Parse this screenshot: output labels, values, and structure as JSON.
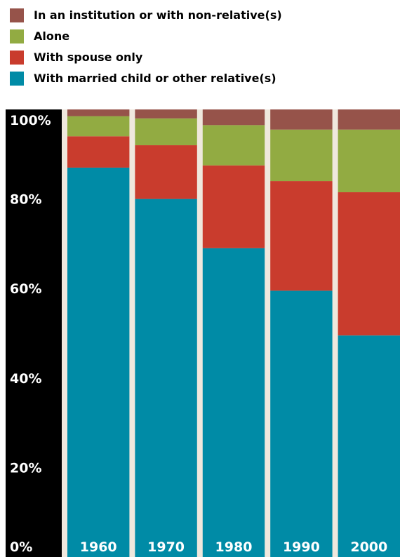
{
  "legend": [
    {
      "label": "In an institution or with non-relative(s)",
      "color": "#96534a"
    },
    {
      "label": "Alone",
      "color": "#92ab42"
    },
    {
      "label": "With spouse only",
      "color": "#c93c2d"
    },
    {
      "label": "With married child or other relative(s)",
      "color": "#008ba6"
    }
  ],
  "colors": {
    "axis_background": "#000000",
    "axis_text": "#ffffff",
    "gap": "#efe8dd",
    "category_text": "#ffffff"
  },
  "chart_data": {
    "type": "bar",
    "stacked": true,
    "categories": [
      "1960",
      "1970",
      "1980",
      "1990",
      "2000"
    ],
    "series": [
      {
        "name": "With married child or other relative(s)",
        "values": [
          87,
          80,
          69,
          59.5,
          49.5
        ]
      },
      {
        "name": "With spouse only",
        "values": [
          7,
          12,
          18.5,
          24.5,
          32
        ]
      },
      {
        "name": "Alone",
        "values": [
          4.5,
          6,
          9,
          11.5,
          14
        ]
      },
      {
        "name": "In an institution or with non-relative(s)",
        "values": [
          1.5,
          2,
          3.5,
          4.5,
          4.5
        ]
      }
    ],
    "ylim": [
      0,
      100
    ],
    "yticks": [
      "0%",
      "20%",
      "40%",
      "60%",
      "80%",
      "100%"
    ],
    "title": "",
    "xlabel": "",
    "ylabel": "",
    "grid": false,
    "legend_position": "top"
  }
}
